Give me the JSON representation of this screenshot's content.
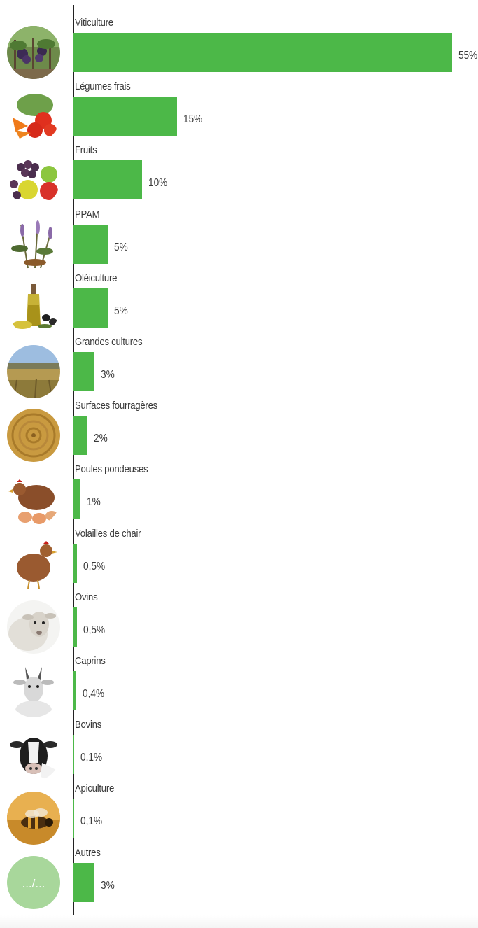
{
  "chart_data": {
    "type": "bar",
    "orientation": "horizontal",
    "bar_color": "#4cb848",
    "categories": [
      "Viticulture",
      "Légumes frais",
      "Fruits",
      "PPAM",
      "Oléiculture",
      "Grandes cultures",
      "Surfaces fourragères",
      "Poules pondeuses",
      "Volailles de chair",
      "Ovins",
      "Caprins",
      "Bovins",
      "Apiculture",
      "Autres"
    ],
    "values": [
      55,
      15,
      10,
      5,
      5,
      3,
      2,
      1,
      0.5,
      0.5,
      0.4,
      0.1,
      0.1,
      3
    ],
    "value_labels": [
      "55%",
      "15%",
      "10%",
      "5%",
      "5%",
      "3%",
      "2%",
      "1%",
      "0,5%",
      "0,5%",
      "0,4%",
      "0,1%",
      "0,1%",
      "3%"
    ],
    "icons": [
      "vineyard-icon",
      "vegetables-icon",
      "fruits-icon",
      "herbs-icon",
      "olive-oil-icon",
      "wheat-field-icon",
      "hay-bale-icon",
      "hen-with-eggs-icon",
      "chicken-icon",
      "sheep-icon",
      "goat-icon",
      "cow-icon",
      "bee-icon",
      "others-icon"
    ],
    "others_icon_text": ".../...",
    "others_icon_color": "#a8d79b",
    "xlim": [
      0,
      55
    ],
    "grid": false,
    "title": "",
    "xlabel": "",
    "ylabel": ""
  }
}
